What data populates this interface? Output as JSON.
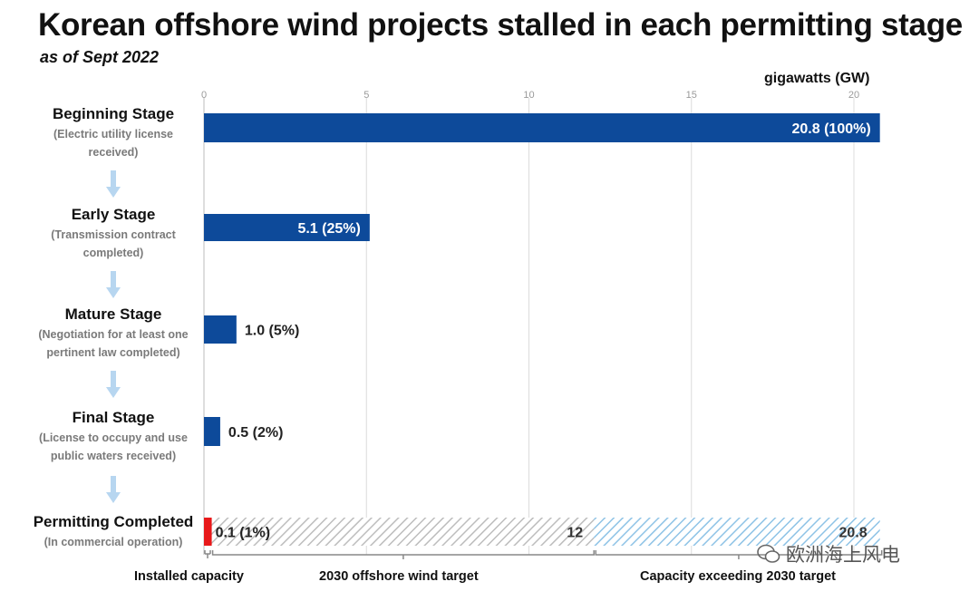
{
  "title": "Korean offshore wind projects stalled in each permitting stage",
  "subtitle": "as of Sept 2022",
  "unit_label": "gigawatts (GW)",
  "stages": [
    {
      "name": "Beginning Stage",
      "desc_line1": "(Electric utility license",
      "desc_line2": "received)"
    },
    {
      "name": "Early Stage",
      "desc_line1": "(Transmission contract",
      "desc_line2": "completed)"
    },
    {
      "name": "Mature Stage",
      "desc_line1": "(Negotiation for at least one",
      "desc_line2": "pertinent law completed)"
    },
    {
      "name": "Final Stage",
      "desc_line1": "(License to occupy and use",
      "desc_line2": "public waters received)"
    },
    {
      "name": "Permitting Completed",
      "desc_line1": "(In commercial operation)",
      "desc_line2": ""
    }
  ],
  "bottom_labels": {
    "installed": "Installed capacity",
    "target": "2030 offshore wind target",
    "exceeding": "Capacity exceeding 2030 target"
  },
  "watermark": "欧洲海上风电",
  "colors": {
    "bar": "#0d4a9a",
    "installed": "#e8191a",
    "target_hatch": "#bdbdbd",
    "exceeding_hatch": "#8ec3e6",
    "arrow": "#b7d6f0",
    "grid": "#dcdcdc"
  },
  "chart_data": {
    "type": "bar",
    "orientation": "horizontal",
    "title": "Korean offshore wind projects stalled in each permitting stage",
    "subtitle": "as of Sept 2022",
    "xlabel": "gigawatts (GW)",
    "xlim": [
      0,
      21
    ],
    "xticks": [
      0,
      5,
      10,
      15,
      20
    ],
    "grid": true,
    "categories": [
      "Beginning Stage",
      "Early Stage",
      "Mature Stage",
      "Final Stage"
    ],
    "values": [
      20.8,
      5.1,
      1.0,
      0.5
    ],
    "labels": [
      "20.8 (100%)",
      "5.1 (25%)",
      "1.0 (5%)",
      "0.5 (2%)"
    ],
    "permitting_completed": {
      "installed": 0.1,
      "installed_label": "0.1 (1%)",
      "target_2030": 12,
      "target_label": "12",
      "total": 20.8,
      "total_label": "20.8"
    }
  }
}
